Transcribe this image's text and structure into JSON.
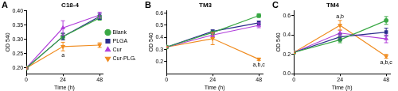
{
  "chart_data": [
    {
      "panel": "A",
      "title": "C18-4",
      "type": "line",
      "x_label": "Time (h)",
      "y_label": "OD 540",
      "x": [
        0,
        24,
        48
      ],
      "xlim": [
        0,
        50
      ],
      "xticks": [
        0,
        24,
        48
      ],
      "ylim": [
        0.18,
        0.4
      ],
      "yticks": [
        {
          "value": 0.2,
          "label": "0.20"
        },
        {
          "value": 0.25,
          "label": "0.25"
        },
        {
          "value": 0.3,
          "label": "0.30"
        },
        {
          "value": 0.35,
          "label": "0.35"
        },
        {
          "value": 0.4,
          "label": "0.40"
        }
      ],
      "grid": false,
      "legend": "right",
      "series": [
        {
          "name": "Blank",
          "color": "#3aa845",
          "marker": "circle",
          "values": [
            0.2,
            0.31,
            0.375
          ],
          "errors": [
            0.003,
            0.01,
            0.008
          ]
        },
        {
          "name": "PLGA",
          "color": "#2b2d8c",
          "marker": "square",
          "values": [
            0.2,
            0.31,
            0.38
          ],
          "errors": [
            0.003,
            0.012,
            0.01
          ]
        },
        {
          "name": "Cur",
          "color": "#b13fdb",
          "marker": "triangle",
          "values": [
            0.2,
            0.34,
            0.385
          ],
          "errors": [
            0.003,
            0.025,
            0.01
          ]
        },
        {
          "name": "Cur-PLGA",
          "color": "#f08c20",
          "marker": "triangle-down",
          "values": [
            0.2,
            0.275,
            0.28
          ],
          "errors": [
            0.003,
            0.015,
            0.008
          ]
        }
      ],
      "annotations": [
        {
          "series": "Cur-PLGA",
          "x": 24,
          "text": "a",
          "position": "below"
        }
      ]
    },
    {
      "panel": "B",
      "title": "TM3",
      "type": "line",
      "x_label": "Time (h)",
      "y_label": "OD 540",
      "x": [
        0,
        24,
        48
      ],
      "xlim": [
        0,
        50
      ],
      "xticks": [
        0,
        24,
        48
      ],
      "ylim": [
        0.1,
        0.62
      ],
      "yticks": [
        0.2,
        0.3,
        0.4,
        0.5,
        0.6
      ],
      "grid": false,
      "series": [
        {
          "name": "Blank",
          "color": "#3aa845",
          "marker": "circle",
          "values": [
            0.32,
            0.44,
            0.58
          ],
          "errors": [
            0.005,
            0.012,
            0.015
          ]
        },
        {
          "name": "PLGA",
          "color": "#2b2d8c",
          "marker": "square",
          "values": [
            0.32,
            0.45,
            0.52
          ],
          "errors": [
            0.005,
            0.012,
            0.015
          ]
        },
        {
          "name": "Cur",
          "color": "#b13fdb",
          "marker": "triangle",
          "values": [
            0.32,
            0.42,
            0.5
          ],
          "errors": [
            0.005,
            0.015,
            0.02
          ]
        },
        {
          "name": "Cur-PLGA",
          "color": "#f08c20",
          "marker": "triangle-down",
          "values": [
            0.32,
            0.39,
            0.22
          ],
          "errors": [
            0.005,
            0.05,
            0.01
          ]
        }
      ],
      "annotations": [
        {
          "series": "Cur-PLGA",
          "x": 48,
          "text": "a,b,c",
          "position": "below"
        }
      ]
    },
    {
      "panel": "C",
      "title": "TM4",
      "type": "line",
      "x_label": "Time (h)",
      "y_label": "OD 540",
      "x": [
        0,
        24,
        48
      ],
      "xlim": [
        0,
        50
      ],
      "xticks": [
        0,
        24,
        48
      ],
      "ylim": [
        0,
        0.65
      ],
      "yticks": [
        {
          "value": 0,
          "label": "0.0"
        },
        0.2,
        0.4,
        0.6
      ],
      "grid": false,
      "series": [
        {
          "name": "Blank",
          "color": "#3aa845",
          "marker": "circle",
          "values": [
            0.22,
            0.35,
            0.55
          ],
          "errors": [
            0.01,
            0.03,
            0.04
          ]
        },
        {
          "name": "PLGA",
          "color": "#2b2d8c",
          "marker": "square",
          "values": [
            0.22,
            0.38,
            0.43
          ],
          "errors": [
            0.01,
            0.03,
            0.04
          ]
        },
        {
          "name": "Cur",
          "color": "#b13fdb",
          "marker": "triangle",
          "values": [
            0.22,
            0.42,
            0.36
          ],
          "errors": [
            0.01,
            0.03,
            0.04
          ]
        },
        {
          "name": "Cur-PLGA",
          "color": "#f08c20",
          "marker": "triangle-down",
          "values": [
            0.22,
            0.5,
            0.18
          ],
          "errors": [
            0.01,
            0.05,
            0.02
          ]
        }
      ],
      "annotations": [
        {
          "series": "Cur-PLGA",
          "x": 24,
          "text": "a,b",
          "position": "above"
        },
        {
          "series": "Cur-PLGA",
          "x": 48,
          "text": "a,b,c",
          "position": "below"
        }
      ]
    }
  ]
}
